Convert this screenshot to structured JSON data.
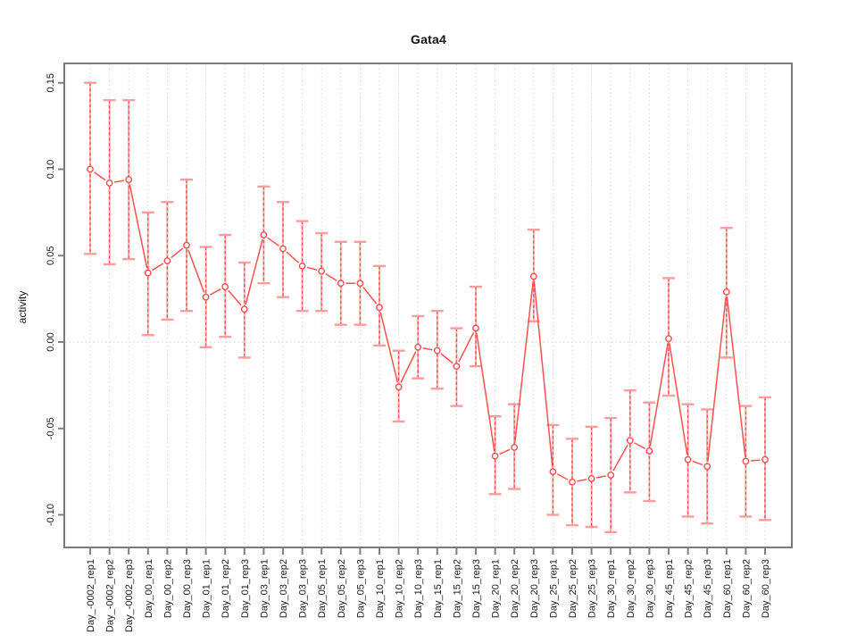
{
  "title": "Gata4",
  "colors": {
    "series": "#ff5050",
    "marker_stroke": "#ff4a4a",
    "errorbar_base": "#ffb3b3",
    "errorbar_dash": "#ff4a4a",
    "errorbar_cap": "#ff9c9c",
    "gridline": "#d9d9d9",
    "zero_line": "#cccccc",
    "axis_box": "#7a7a7a",
    "tick_mark": "#808080",
    "tick_text": "#1a1a1a"
  },
  "chart_data": {
    "type": "line",
    "title": "Gata4",
    "xlabel": "",
    "ylabel": "activity",
    "ylim": [
      -0.12,
      0.16
    ],
    "yticks": [
      0.15,
      0.1,
      0.05,
      0.0,
      -0.05,
      -0.1
    ],
    "ytick_labels": [
      "0.15",
      "0.10",
      "0.05",
      "0.00",
      "-0.05",
      "-0.10"
    ],
    "grid": "vertical dotted line at each category; horizontal dotted line at y=0",
    "legend": "none",
    "marker": "open-circle",
    "line_style": "solid segments between points with gaps at markers (R type='b')",
    "error_bars": "vertical dashed red over pink with pink caps",
    "categories": [
      "Day_-0002_rep1",
      "Day_-0002_rep2",
      "Day_-0002_rep3",
      "Day_00_rep1",
      "Day_00_rep2",
      "Day_00_rep3",
      "Day_01_rep1",
      "Day_01_rep2",
      "Day_01_rep3",
      "Day_03_rep1",
      "Day_03_rep2",
      "Day_03_rep3",
      "Day_05_rep1",
      "Day_05_rep2",
      "Day_05_rep3",
      "Day_10_rep1",
      "Day_10_rep2",
      "Day_10_rep3",
      "Day_15_rep1",
      "Day_15_rep2",
      "Day_15_rep3",
      "Day_20_rep1",
      "Day_20_rep2",
      "Day_20_rep3",
      "Day_25_rep1",
      "Day_25_rep2",
      "Day_25_rep3",
      "Day_30_rep1",
      "Day_30_rep2",
      "Day_30_rep3",
      "Day_45_rep1",
      "Day_45_rep2",
      "Day_45_rep3",
      "Day_60_rep1",
      "Day_60_rep2",
      "Day_60_rep3"
    ],
    "series": [
      {
        "name": "activity",
        "values": [
          0.1,
          0.092,
          0.094,
          0.04,
          0.047,
          0.056,
          0.026,
          0.032,
          0.019,
          0.062,
          0.054,
          0.044,
          0.041,
          0.034,
          0.034,
          0.02,
          -0.026,
          -0.003,
          -0.005,
          -0.014,
          0.008,
          -0.066,
          -0.061,
          0.038,
          -0.075,
          -0.081,
          -0.079,
          -0.077,
          -0.057,
          -0.063,
          0.002,
          -0.068,
          -0.072,
          0.029,
          -0.069,
          -0.068
        ],
        "upper": [
          0.15,
          0.14,
          0.14,
          0.075,
          0.081,
          0.094,
          0.055,
          0.062,
          0.046,
          0.09,
          0.081,
          0.07,
          0.063,
          0.058,
          0.058,
          0.044,
          -0.005,
          0.015,
          0.018,
          0.008,
          0.032,
          -0.043,
          -0.036,
          0.065,
          -0.048,
          -0.056,
          -0.049,
          -0.044,
          -0.028,
          -0.035,
          0.037,
          -0.036,
          -0.039,
          0.066,
          -0.037,
          -0.032
        ],
        "lower": [
          0.051,
          0.045,
          0.048,
          0.004,
          0.013,
          0.018,
          -0.003,
          0.003,
          -0.009,
          0.034,
          0.026,
          0.018,
          0.018,
          0.01,
          0.01,
          -0.002,
          -0.046,
          -0.021,
          -0.027,
          -0.037,
          -0.014,
          -0.088,
          -0.085,
          0.012,
          -0.1,
          -0.106,
          -0.107,
          -0.11,
          -0.087,
          -0.092,
          -0.031,
          -0.101,
          -0.105,
          -0.009,
          -0.101,
          -0.103
        ]
      }
    ]
  }
}
